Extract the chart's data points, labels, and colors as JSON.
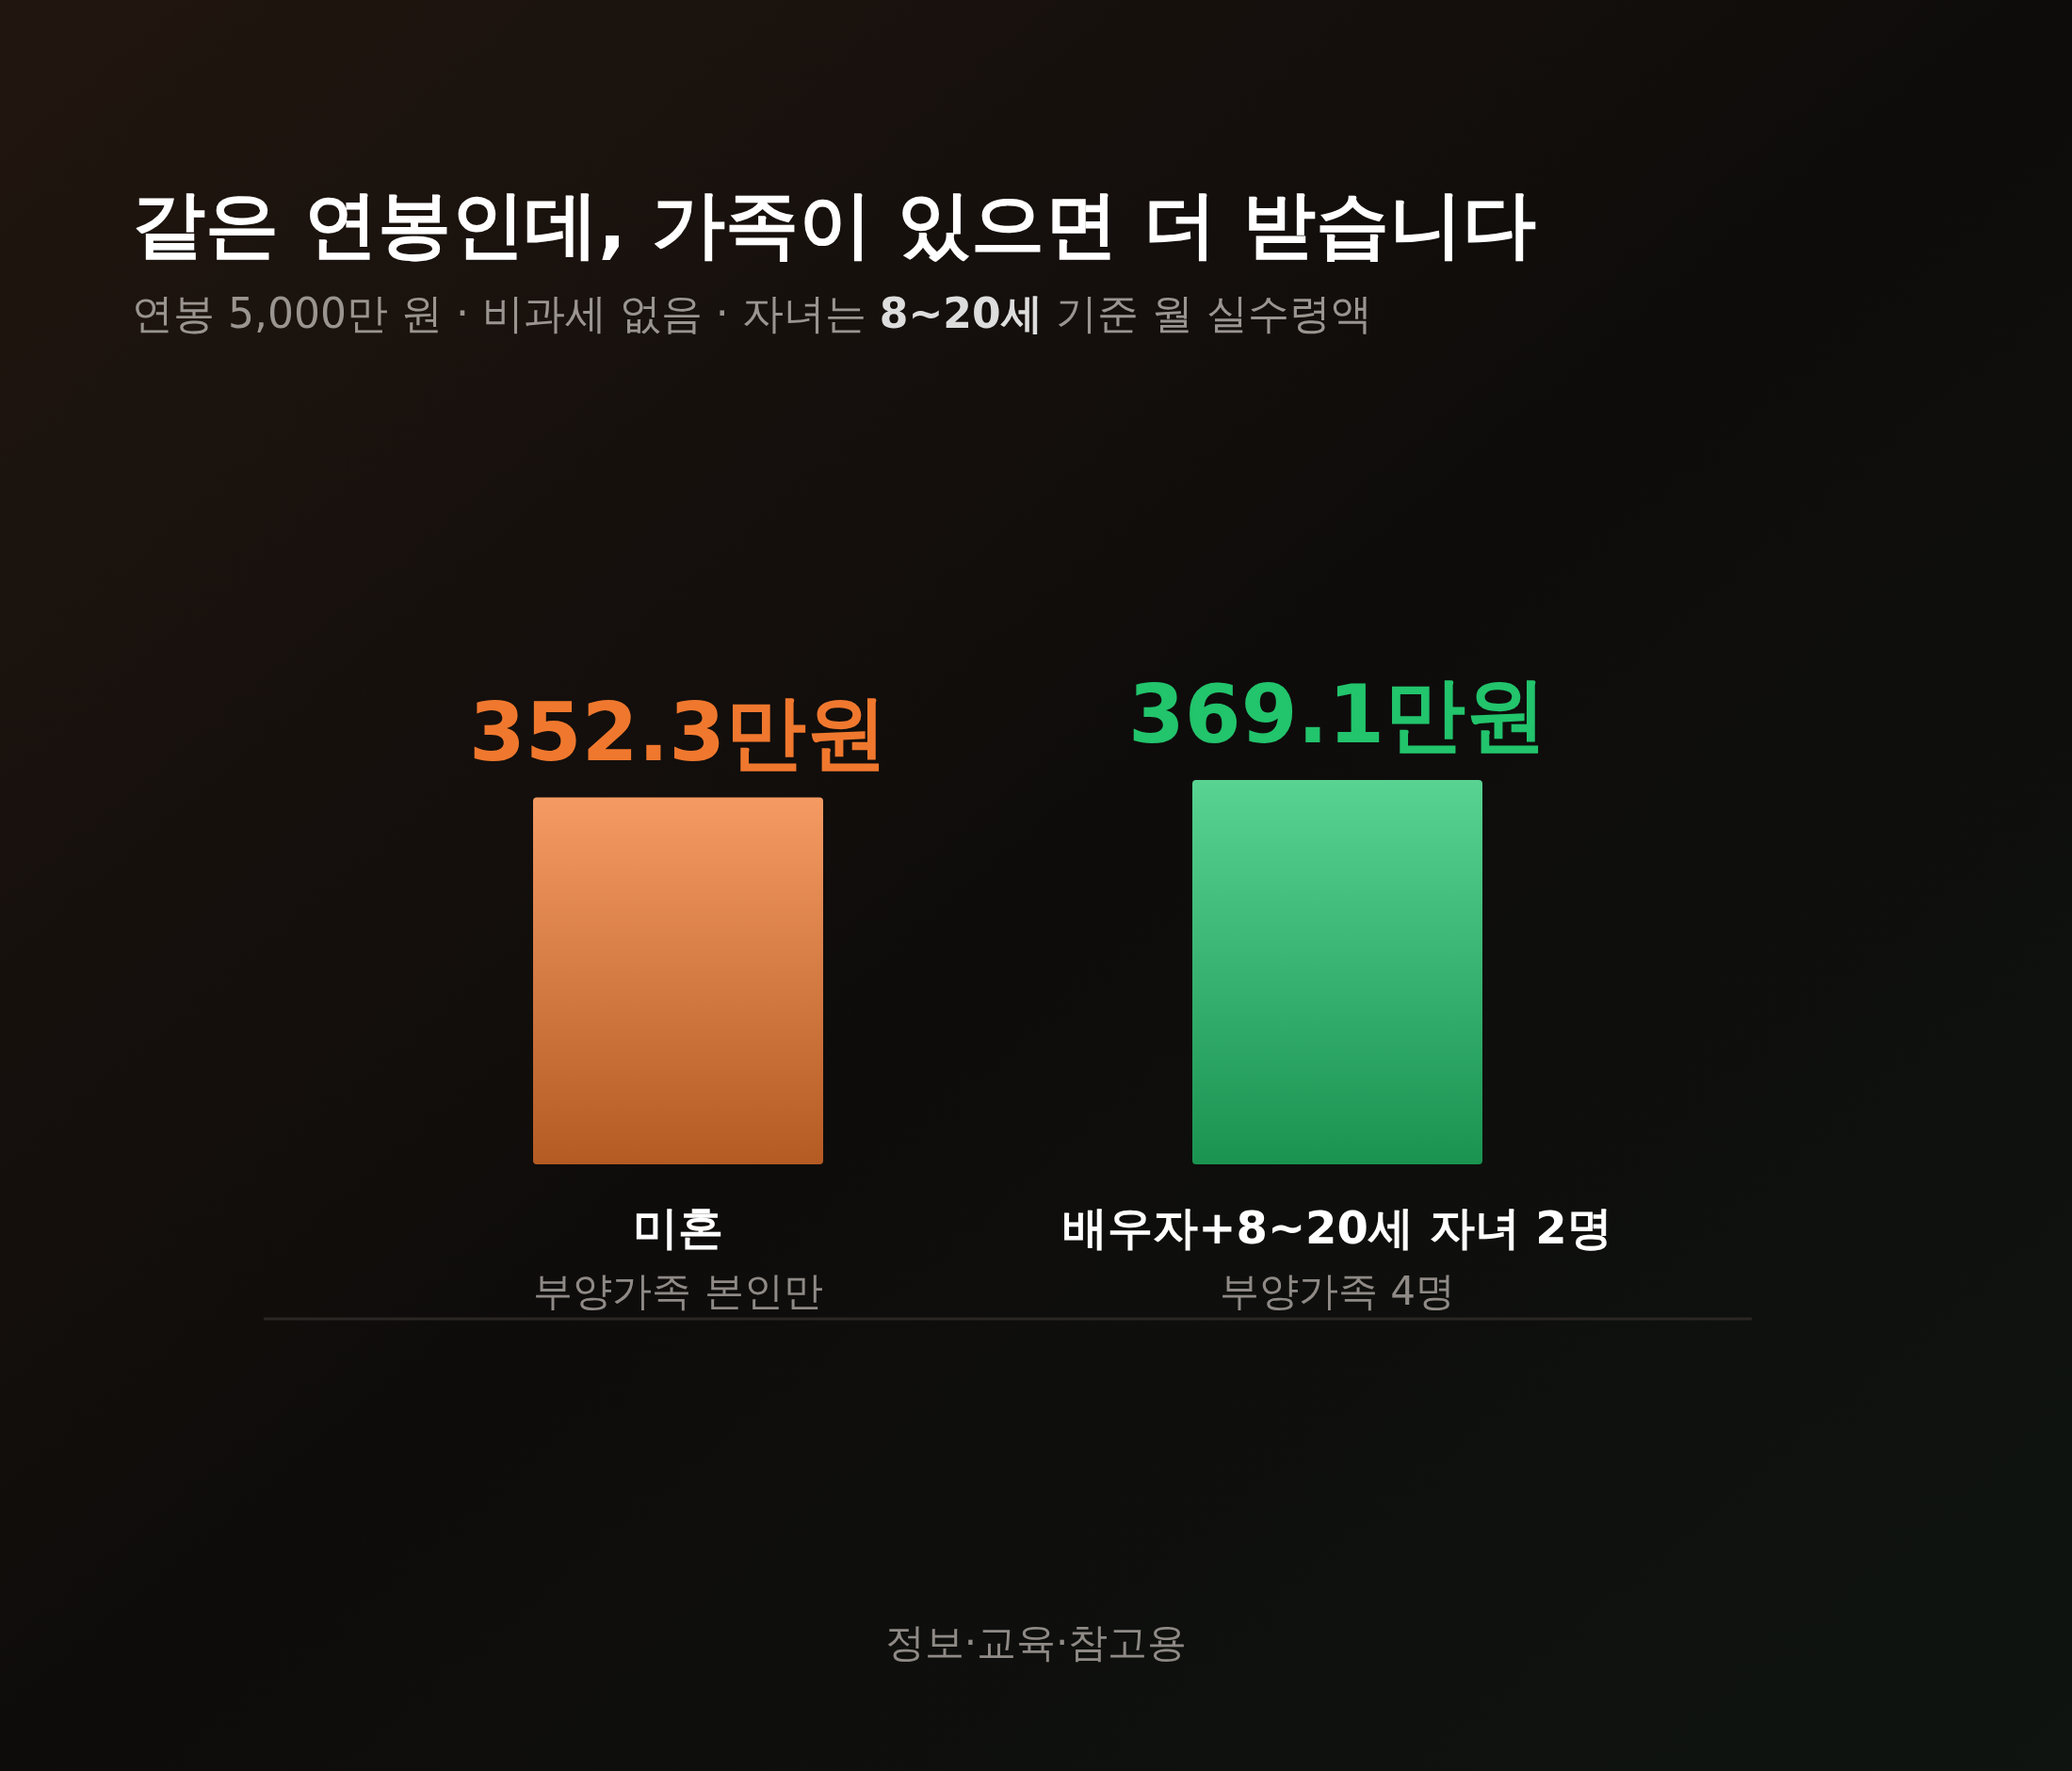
{
  "chart_data": {
    "type": "bar",
    "title": "같은 연봉인데, 가족이 있으면 더 받습니다",
    "subtitle": "연봉 5,000만 원 · 비과세 없음 · 자녀는 **8~20세** 기준 월 실수령액",
    "categories": [
      "미혼",
      "배우자+8~20세 자녀 2명"
    ],
    "values": [
      352.3,
      369.1
    ],
    "colors": [
      "#f0782e",
      "#22c46c"
    ],
    "value_labels": [
      "352.3만원",
      "369.1만원"
    ],
    "annotations": [
      "부양가족 본인만",
      "부양가족 4명",
      "정보·교육·참고용"
    ]
  }
}
